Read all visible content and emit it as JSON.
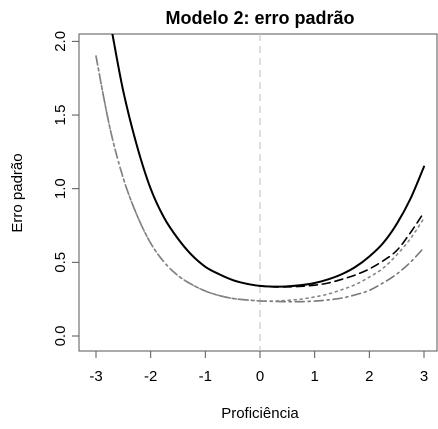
{
  "chart_data": {
    "type": "line",
    "title": "Modelo 2: erro padrão",
    "xlabel": "Proficiência",
    "ylabel": "Erro padrão",
    "xlim": [
      -3.0,
      3.0
    ],
    "ylim": [
      0.0,
      2.05
    ],
    "x_ticks": [
      -3,
      -2,
      -1,
      0,
      1,
      2,
      3
    ],
    "x_tick_labels": [
      "-3",
      "-2",
      "-1",
      "0",
      "1",
      "2",
      "3"
    ],
    "y_ticks": [
      0.0,
      0.5,
      1.0,
      1.5,
      2.0
    ],
    "y_tick_labels": [
      "0.0",
      "0.5",
      "1.0",
      "1.5",
      "2.0"
    ],
    "grid": false,
    "legend": "none",
    "reference_line": {
      "x": 0,
      "color": "#c8c8c8",
      "style": "dashed"
    },
    "series": [
      {
        "color": "#000000",
        "style": "solid",
        "width": 2.0,
        "x": [
          -2.7,
          -2.5,
          -2.25,
          -2.0,
          -1.75,
          -1.5,
          -1.25,
          -1.0,
          -0.75,
          -0.5,
          -0.25,
          0.0,
          0.25,
          0.5,
          0.75,
          1.0,
          1.25,
          1.5,
          1.75,
          2.0,
          2.25,
          2.5,
          2.75,
          3.0
        ],
        "y": [
          2.05,
          1.66,
          1.29,
          1.0,
          0.8,
          0.66,
          0.55,
          0.47,
          0.42,
          0.38,
          0.355,
          0.34,
          0.335,
          0.337,
          0.345,
          0.36,
          0.385,
          0.42,
          0.47,
          0.54,
          0.63,
          0.76,
          0.93,
          1.15
        ]
      },
      {
        "color": "#000000",
        "style": "dashed",
        "width": 1.6,
        "x": [
          -2.7,
          -2.5,
          -2.25,
          -2.0,
          -1.75,
          -1.5,
          -1.25,
          -1.0,
          -0.75,
          -0.5,
          -0.25,
          0.0,
          0.25,
          0.5,
          0.75,
          1.0,
          1.25,
          1.5,
          1.75,
          2.0,
          2.25,
          2.5,
          2.75,
          3.0
        ],
        "y": [
          2.05,
          1.66,
          1.29,
          1.0,
          0.8,
          0.66,
          0.55,
          0.47,
          0.42,
          0.38,
          0.355,
          0.34,
          0.333,
          0.333,
          0.337,
          0.345,
          0.36,
          0.385,
          0.415,
          0.455,
          0.51,
          0.58,
          0.7,
          0.84
        ]
      },
      {
        "color": "#888888",
        "style": "dotted",
        "width": 1.6,
        "x": [
          -3.0,
          -2.75,
          -2.5,
          -2.25,
          -2.0,
          -1.75,
          -1.5,
          -1.25,
          -1.0,
          -0.75,
          -0.5,
          -0.25,
          0.0,
          0.25,
          0.5,
          0.75,
          1.0,
          1.25,
          1.5,
          1.75,
          2.0,
          2.25,
          2.5,
          2.75,
          3.0
        ],
        "y": [
          1.9,
          1.42,
          1.07,
          0.82,
          0.63,
          0.5,
          0.41,
          0.35,
          0.305,
          0.275,
          0.255,
          0.245,
          0.238,
          0.238,
          0.242,
          0.25,
          0.265,
          0.285,
          0.315,
          0.35,
          0.4,
          0.46,
          0.55,
          0.66,
          0.8
        ]
      },
      {
        "color": "#777777",
        "style": "dashdot",
        "width": 1.6,
        "x": [
          -3.0,
          -2.75,
          -2.5,
          -2.25,
          -2.0,
          -1.75,
          -1.5,
          -1.25,
          -1.0,
          -0.75,
          -0.5,
          -0.25,
          0.0,
          0.25,
          0.5,
          0.75,
          1.0,
          1.25,
          1.5,
          1.75,
          2.0,
          2.25,
          2.5,
          2.75,
          3.0
        ],
        "y": [
          1.9,
          1.42,
          1.07,
          0.82,
          0.63,
          0.5,
          0.41,
          0.35,
          0.305,
          0.275,
          0.255,
          0.245,
          0.238,
          0.235,
          0.233,
          0.233,
          0.237,
          0.245,
          0.258,
          0.28,
          0.31,
          0.36,
          0.42,
          0.5,
          0.6
        ]
      }
    ]
  }
}
